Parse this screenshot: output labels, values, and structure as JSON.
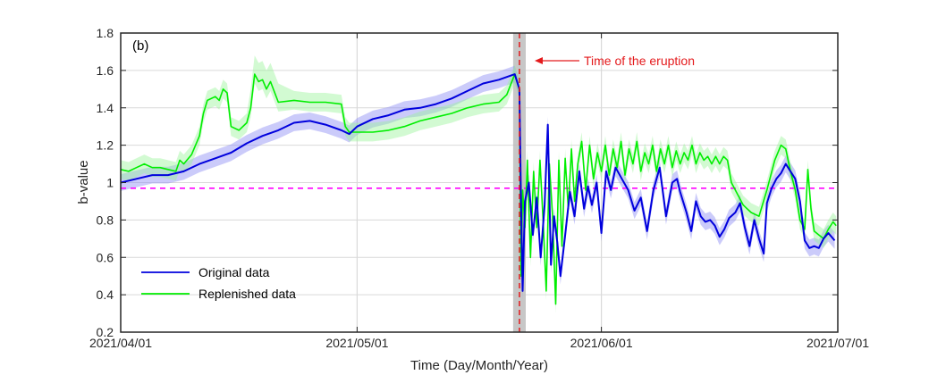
{
  "chart_data": {
    "type": "line",
    "panel_label": "(b)",
    "xlabel": "Time (Day/Month/Year)",
    "ylabel": "b-value",
    "x_range_days": [
      0,
      91
    ],
    "x_ticks": [
      {
        "day": 0,
        "label": "2021/04/01"
      },
      {
        "day": 30,
        "label": "2021/05/01"
      },
      {
        "day": 61,
        "label": "2021/06/01"
      },
      {
        "day": 91,
        "label": "2021/07/01"
      }
    ],
    "ylim": [
      0.2,
      1.8
    ],
    "y_ticks": [
      0.2,
      0.4,
      0.6,
      0.8,
      1,
      1.2,
      1.4,
      1.6,
      1.8
    ],
    "y_tick_labels": [
      "0.2",
      "0.4",
      "0.6",
      "0.8",
      "1",
      "1.2",
      "1.4",
      "1.6",
      "1.8"
    ],
    "grid": true,
    "reference_line": {
      "y": 0.97,
      "style": "dashed",
      "color": "#ff00ff"
    },
    "eruption": {
      "day": 50.6,
      "band": [
        49.8,
        51.4
      ],
      "color": "#e41a1c",
      "band_color": "#bdbdbd"
    },
    "annotation": {
      "text": "Time of the eruption",
      "day": 50.6,
      "y": 1.66
    },
    "legend_position": "bottom-left",
    "series": [
      {
        "name": "Original data",
        "color": "#0000dd",
        "band_color": "#8c8cf5",
        "points": [
          [
            0,
            1.0
          ],
          [
            2,
            1.02
          ],
          [
            4,
            1.04
          ],
          [
            6,
            1.04
          ],
          [
            8,
            1.06
          ],
          [
            10,
            1.1
          ],
          [
            12,
            1.13
          ],
          [
            14,
            1.16
          ],
          [
            16,
            1.21
          ],
          [
            18,
            1.25
          ],
          [
            20,
            1.28
          ],
          [
            22,
            1.32
          ],
          [
            24,
            1.33
          ],
          [
            26,
            1.31
          ],
          [
            28,
            1.28
          ],
          [
            29,
            1.26
          ],
          [
            30,
            1.3
          ],
          [
            32,
            1.34
          ],
          [
            34,
            1.36
          ],
          [
            36,
            1.39
          ],
          [
            38,
            1.4
          ],
          [
            40,
            1.42
          ],
          [
            42,
            1.45
          ],
          [
            44,
            1.49
          ],
          [
            46,
            1.53
          ],
          [
            48,
            1.55
          ],
          [
            50,
            1.58
          ],
          [
            50.6,
            1.5
          ],
          [
            50.8,
            0.9
          ],
          [
            51,
            0.42
          ],
          [
            51.3,
            0.9
          ],
          [
            51.8,
            1.0
          ],
          [
            52.3,
            0.72
          ],
          [
            52.8,
            0.92
          ],
          [
            53.3,
            0.6
          ],
          [
            53.8,
            0.88
          ],
          [
            54.2,
            1.31
          ],
          [
            54.6,
            0.56
          ],
          [
            55,
            0.82
          ],
          [
            55.4,
            0.68
          ],
          [
            55.8,
            0.5
          ],
          [
            56.4,
            0.72
          ],
          [
            57,
            0.95
          ],
          [
            57.6,
            0.82
          ],
          [
            58.2,
            1.06
          ],
          [
            58.8,
            0.86
          ],
          [
            59.3,
            0.98
          ],
          [
            59.8,
            0.88
          ],
          [
            60.4,
            1.0
          ],
          [
            61,
            0.73
          ],
          [
            61.6,
            1.06
          ],
          [
            62.2,
            0.96
          ],
          [
            62.8,
            1.08
          ],
          [
            63.6,
            1.02
          ],
          [
            64.4,
            0.96
          ],
          [
            65.2,
            0.85
          ],
          [
            66,
            0.92
          ],
          [
            66.8,
            0.74
          ],
          [
            67.6,
            0.96
          ],
          [
            68.4,
            1.08
          ],
          [
            69.2,
            0.82
          ],
          [
            70,
            1.0
          ],
          [
            70.6,
            1.02
          ],
          [
            71,
            0.95
          ],
          [
            71.8,
            0.84
          ],
          [
            72.4,
            0.74
          ],
          [
            73,
            0.9
          ],
          [
            73.6,
            0.82
          ],
          [
            74.2,
            0.79
          ],
          [
            74.8,
            0.8
          ],
          [
            75.4,
            0.77
          ],
          [
            76,
            0.71
          ],
          [
            76.6,
            0.75
          ],
          [
            77.2,
            0.81
          ],
          [
            78,
            0.84
          ],
          [
            78.6,
            0.89
          ],
          [
            79.2,
            0.76
          ],
          [
            79.8,
            0.66
          ],
          [
            80.4,
            0.8
          ],
          [
            81,
            0.7
          ],
          [
            81.6,
            0.62
          ],
          [
            82,
            0.89
          ],
          [
            82.6,
            0.97
          ],
          [
            83.2,
            1.02
          ],
          [
            83.8,
            1.05
          ],
          [
            84.4,
            1.1
          ],
          [
            85,
            1.06
          ],
          [
            85.6,
            1.02
          ],
          [
            86.2,
            0.9
          ],
          [
            86.8,
            0.69
          ],
          [
            87.4,
            0.65
          ],
          [
            88,
            0.66
          ],
          [
            88.6,
            0.65
          ],
          [
            89.2,
            0.7
          ],
          [
            89.8,
            0.73
          ],
          [
            90.6,
            0.69
          ]
        ]
      },
      {
        "name": "Replenished data",
        "color": "#00ee00",
        "band_color": "#9cf59c",
        "points": [
          [
            0,
            1.07
          ],
          [
            1,
            1.06
          ],
          [
            2,
            1.08
          ],
          [
            3,
            1.1
          ],
          [
            4,
            1.08
          ],
          [
            5,
            1.08
          ],
          [
            6,
            1.07
          ],
          [
            7,
            1.06
          ],
          [
            7.5,
            1.12
          ],
          [
            8,
            1.1
          ],
          [
            9,
            1.15
          ],
          [
            10,
            1.25
          ],
          [
            10.5,
            1.37
          ],
          [
            11,
            1.44
          ],
          [
            12,
            1.46
          ],
          [
            12.5,
            1.44
          ],
          [
            13,
            1.5
          ],
          [
            13.5,
            1.48
          ],
          [
            14,
            1.3
          ],
          [
            15,
            1.28
          ],
          [
            16,
            1.32
          ],
          [
            16.5,
            1.4
          ],
          [
            17,
            1.58
          ],
          [
            17.5,
            1.54
          ],
          [
            18,
            1.55
          ],
          [
            18.5,
            1.5
          ],
          [
            19,
            1.54
          ],
          [
            20,
            1.43
          ],
          [
            22,
            1.44
          ],
          [
            24,
            1.43
          ],
          [
            26,
            1.43
          ],
          [
            28,
            1.42
          ],
          [
            28.5,
            1.3
          ],
          [
            29,
            1.27
          ],
          [
            30,
            1.27
          ],
          [
            32,
            1.27
          ],
          [
            34,
            1.28
          ],
          [
            36,
            1.3
          ],
          [
            38,
            1.33
          ],
          [
            40,
            1.35
          ],
          [
            42,
            1.37
          ],
          [
            44,
            1.4
          ],
          [
            46,
            1.42
          ],
          [
            48,
            1.43
          ],
          [
            49,
            1.47
          ],
          [
            50,
            1.58
          ],
          [
            50.6,
            1.5
          ],
          [
            50.8,
            0.5
          ],
          [
            51,
            0.96
          ],
          [
            51.3,
            0.76
          ],
          [
            51.6,
            1.12
          ],
          [
            52,
            0.6
          ],
          [
            52.4,
            1.06
          ],
          [
            52.8,
            0.76
          ],
          [
            53.2,
            1.12
          ],
          [
            53.6,
            0.8
          ],
          [
            54,
            0.42
          ],
          [
            54.4,
            1.1
          ],
          [
            54.8,
            0.82
          ],
          [
            55.2,
            0.35
          ],
          [
            55.6,
            1.12
          ],
          [
            56,
            0.66
          ],
          [
            56.4,
            1.13
          ],
          [
            56.8,
            0.86
          ],
          [
            57.2,
            1.18
          ],
          [
            57.6,
            0.9
          ],
          [
            58,
            1.1
          ],
          [
            58.5,
            1.22
          ],
          [
            59,
            0.96
          ],
          [
            59.5,
            1.2
          ],
          [
            60,
            1.02
          ],
          [
            60.5,
            1.16
          ],
          [
            61,
            1.06
          ],
          [
            61.5,
            1.2
          ],
          [
            62,
            1.04
          ],
          [
            62.5,
            1.18
          ],
          [
            63,
            1.08
          ],
          [
            63.5,
            1.22
          ],
          [
            64,
            1.04
          ],
          [
            64.5,
            1.18
          ],
          [
            65,
            1.1
          ],
          [
            65.5,
            1.22
          ],
          [
            66,
            1.06
          ],
          [
            66.5,
            1.16
          ],
          [
            67,
            1.1
          ],
          [
            67.5,
            1.2
          ],
          [
            68,
            1.06
          ],
          [
            68.5,
            1.18
          ],
          [
            69,
            1.1
          ],
          [
            69.5,
            1.2
          ],
          [
            70,
            1.08
          ],
          [
            70.5,
            1.17
          ],
          [
            71,
            1.1
          ],
          [
            71.5,
            1.16
          ],
          [
            72,
            1.12
          ],
          [
            72.5,
            1.2
          ],
          [
            73,
            1.1
          ],
          [
            73.5,
            1.16
          ],
          [
            74,
            1.12
          ],
          [
            74.5,
            1.14
          ],
          [
            75,
            1.1
          ],
          [
            75.5,
            1.14
          ],
          [
            76,
            1.1
          ],
          [
            76.5,
            1.14
          ],
          [
            77,
            1.12
          ],
          [
            77.5,
            1.0
          ],
          [
            78,
            0.96
          ],
          [
            78.5,
            0.92
          ],
          [
            79,
            0.88
          ],
          [
            79.5,
            0.86
          ],
          [
            80,
            0.84
          ],
          [
            80.5,
            0.83
          ],
          [
            81,
            0.82
          ],
          [
            82,
            0.96
          ],
          [
            83,
            1.12
          ],
          [
            83.8,
            1.2
          ],
          [
            84.4,
            1.18
          ],
          [
            85,
            1.06
          ],
          [
            85.6,
            0.96
          ],
          [
            86.2,
            0.8
          ],
          [
            86.8,
            0.75
          ],
          [
            87.2,
            1.07
          ],
          [
            87.6,
            0.86
          ],
          [
            88,
            0.74
          ],
          [
            88.6,
            0.72
          ],
          [
            89.2,
            0.7
          ],
          [
            89.8,
            0.75
          ],
          [
            90.4,
            0.79
          ],
          [
            90.8,
            0.77
          ]
        ]
      }
    ]
  }
}
